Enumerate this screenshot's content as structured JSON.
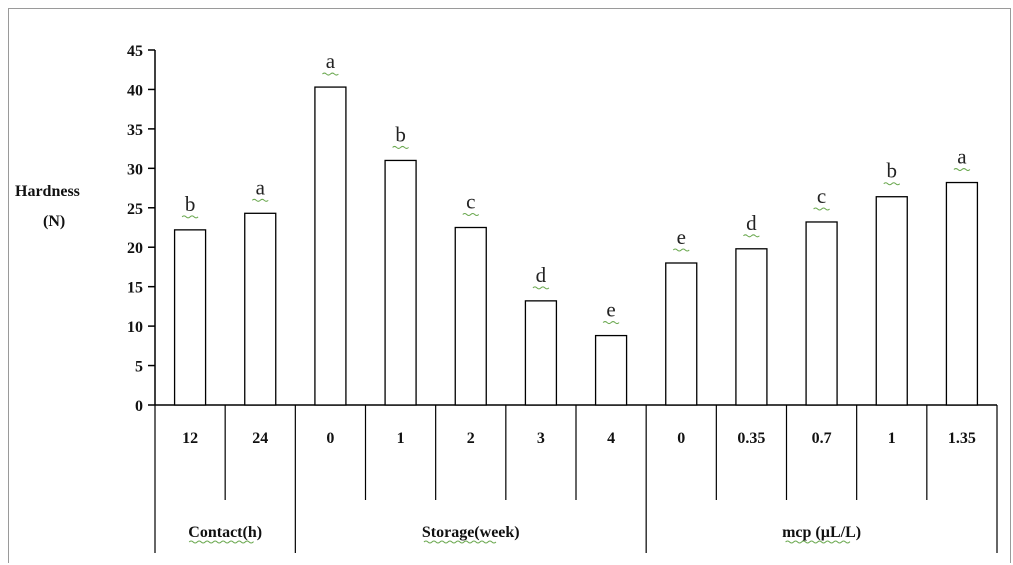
{
  "chart_data": {
    "type": "bar",
    "ylabel": [
      "Hardness",
      "(N)"
    ],
    "ylim": [
      0,
      45
    ],
    "yticks": [
      "0",
      "5",
      "10",
      "15",
      "20",
      "25",
      "30",
      "35",
      "40",
      "45"
    ],
    "grid": false,
    "bar_fill": "#ffffff",
    "bar_stroke": "#000000",
    "categories": [
      "12",
      "24",
      "0",
      "1",
      "2",
      "3",
      "4",
      "0",
      "0.35",
      "0.7",
      "1",
      "1.35"
    ],
    "values": [
      22.2,
      24.3,
      40.3,
      31.0,
      22.5,
      13.2,
      8.8,
      18.0,
      19.8,
      23.2,
      26.4,
      28.2
    ],
    "letters": [
      "b",
      "a",
      "a",
      "b",
      "c",
      "d",
      "e",
      "e",
      "d",
      "c",
      "b",
      "a"
    ],
    "groups": [
      {
        "label": "Contact(h)",
        "start": 0,
        "end": 1
      },
      {
        "label": "Storage(week)",
        "start": 2,
        "end": 6
      },
      {
        "label": "mcp (µL/L)",
        "start": 7,
        "end": 11
      }
    ]
  }
}
